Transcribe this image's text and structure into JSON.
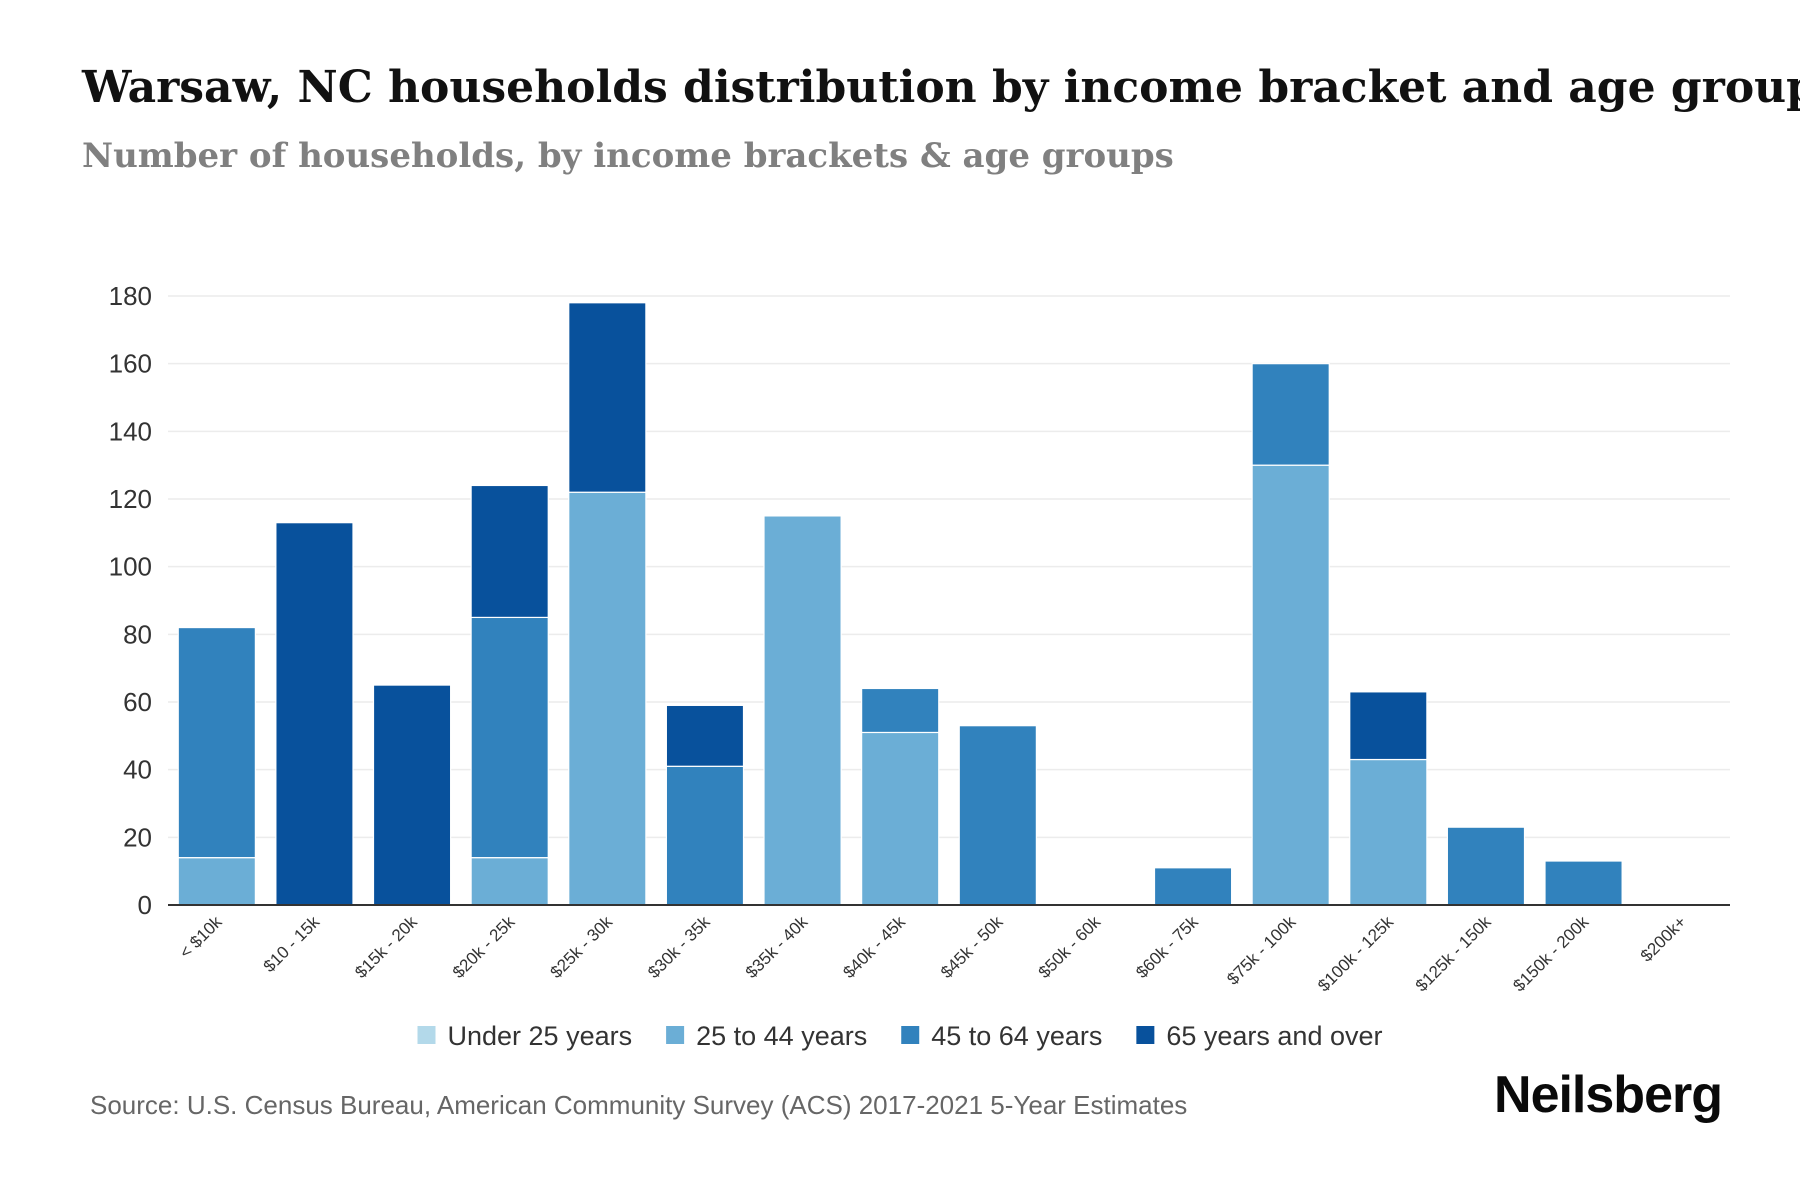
{
  "header": {
    "title": "Warsaw, NC households distribution by income bracket and age group",
    "subtitle": "Number of households, by income brackets & age groups"
  },
  "footer": {
    "source": "Source: U.S. Census Bureau, American Community Survey (ACS) 2017-2021 5-Year Estimates",
    "brand": "Neilsberg"
  },
  "colors": {
    "under_25": "#b3d9ea",
    "age_25_44": "#6baed6",
    "age_45_64": "#3182bd",
    "age_65_over": "#08519c",
    "grid": "#ececec",
    "axis": "#333333"
  },
  "chart_data": {
    "type": "bar",
    "stacked": true,
    "title": "Warsaw, NC households distribution by income bracket and age group",
    "subtitle": "Number of households, by income brackets & age groups",
    "xlabel": "",
    "ylabel": "",
    "ylim": [
      0,
      180
    ],
    "yticks": [
      0,
      20,
      40,
      60,
      80,
      100,
      120,
      140,
      160,
      180
    ],
    "grid": true,
    "legend_position": "bottom",
    "categories": [
      "< $10k",
      "$10 - 15k",
      "$15k - 20k",
      "$20k - 25k",
      "$25k - 30k",
      "$30k - 35k",
      "$35k - 40k",
      "$40k - 45k",
      "$45k - 50k",
      "$50k - 60k",
      "$60k - 75k",
      "$75k - 100k",
      "$100k - 125k",
      "$125k - 150k",
      "$150k - 200k",
      "$200k+"
    ],
    "series": [
      {
        "name": "Under 25 years",
        "color_key": "under_25",
        "values": [
          0,
          0,
          0,
          0,
          0,
          0,
          0,
          0,
          0,
          0,
          0,
          0,
          0,
          0,
          0,
          0
        ]
      },
      {
        "name": "25 to 44 years",
        "color_key": "age_25_44",
        "values": [
          14,
          0,
          0,
          14,
          122,
          0,
          115,
          51,
          0,
          0,
          0,
          130,
          43,
          0,
          0,
          0
        ]
      },
      {
        "name": "45 to 64 years",
        "color_key": "age_45_64",
        "values": [
          68,
          0,
          0,
          71,
          0,
          41,
          0,
          13,
          53,
          0,
          11,
          30,
          0,
          23,
          13,
          0
        ]
      },
      {
        "name": "65 years and over",
        "color_key": "age_65_over",
        "values": [
          0,
          113,
          65,
          39,
          56,
          18,
          0,
          0,
          0,
          0,
          0,
          0,
          20,
          0,
          0,
          0
        ]
      }
    ]
  }
}
